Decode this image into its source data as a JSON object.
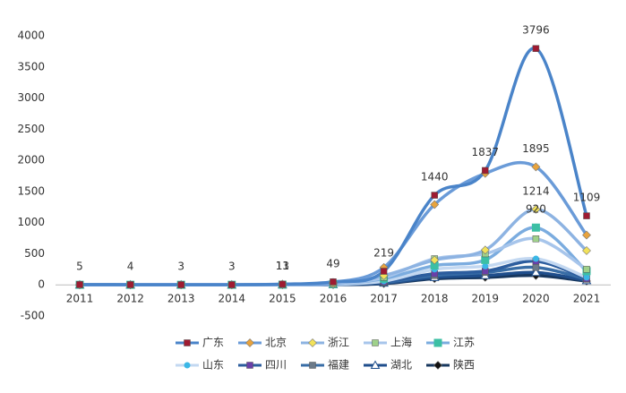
{
  "chart_data": {
    "type": "line",
    "categories": [
      "2011",
      "2012",
      "2013",
      "2014",
      "2015",
      "2016",
      "2017",
      "2018",
      "2019",
      "2020",
      "2021"
    ],
    "ylim": [
      -500,
      4000
    ],
    "yticks": [
      -500,
      0,
      500,
      1000,
      1500,
      2000,
      2500,
      3000,
      3500,
      4000
    ],
    "grid": false,
    "series": [
      {
        "name": "广东",
        "color": "#4a84c9",
        "marker": "square",
        "marker_color": "#9e1b32",
        "values": [
          5,
          4,
          3,
          3,
          11,
          49,
          219,
          1440,
          1837,
          3796,
          1109
        ],
        "value_labels": [
          "5",
          "4",
          "3",
          "3",
          "11",
          "49",
          "219",
          "1440",
          "1837",
          "3796",
          "1109"
        ]
      },
      {
        "name": "北京",
        "color": "#6a9bd8",
        "marker": "diamond",
        "marker_color": "#e8a33d",
        "values": [
          2,
          2,
          2,
          2,
          13,
          40,
          280,
          1290,
          1790,
          1895,
          800
        ],
        "value_labels": [
          null,
          null,
          null,
          null,
          "13",
          null,
          null,
          null,
          null,
          "1895",
          null
        ]
      },
      {
        "name": "浙江",
        "color": "#8db3e2",
        "marker": "diamond",
        "marker_color": "#f2e25a",
        "values": [
          1,
          1,
          1,
          1,
          5,
          20,
          150,
          400,
          560,
          1214,
          550
        ],
        "value_labels": [
          null,
          null,
          null,
          null,
          null,
          null,
          null,
          null,
          null,
          "1214",
          null
        ]
      },
      {
        "name": "上海",
        "color": "#a7c5eb",
        "marker": "square",
        "marker_color": "#9fd18a",
        "values": [
          1,
          1,
          1,
          1,
          4,
          15,
          120,
          420,
          500,
          740,
          250
        ]
      },
      {
        "name": "江苏",
        "color": "#7bacdf",
        "marker": "x",
        "marker_color": "#3cbfa4",
        "values": [
          1,
          1,
          1,
          1,
          3,
          12,
          100,
          310,
          400,
          920,
          220
        ],
        "value_labels": [
          null,
          null,
          null,
          null,
          null,
          null,
          null,
          null,
          null,
          "920",
          null
        ]
      },
      {
        "name": "山东",
        "color": "#c3d8f1",
        "marker": "circle",
        "marker_color": "#3ab7e6",
        "values": [
          0,
          0,
          0,
          0,
          2,
          8,
          60,
          250,
          300,
          420,
          120
        ]
      },
      {
        "name": "四川",
        "color": "#2c5d9e",
        "marker": "square",
        "marker_color": "#6a3fa8",
        "values": [
          0,
          0,
          0,
          0,
          2,
          6,
          50,
          180,
          220,
          380,
          100
        ]
      },
      {
        "name": "福建",
        "color": "#386da6",
        "marker": "square",
        "marker_color": "#6c7a89",
        "values": [
          0,
          0,
          0,
          0,
          1,
          5,
          40,
          150,
          200,
          280,
          90
        ]
      },
      {
        "name": "湖北",
        "color": "#1f4e8c",
        "marker": "triangle",
        "marker_color": "#ffffff",
        "values": [
          0,
          0,
          0,
          0,
          1,
          4,
          30,
          120,
          150,
          200,
          70
        ]
      },
      {
        "name": "陕西",
        "color": "#17375e",
        "marker": "diamond",
        "marker_color": "#111111",
        "values": [
          0,
          0,
          0,
          0,
          1,
          3,
          20,
          100,
          120,
          150,
          60
        ]
      }
    ]
  }
}
